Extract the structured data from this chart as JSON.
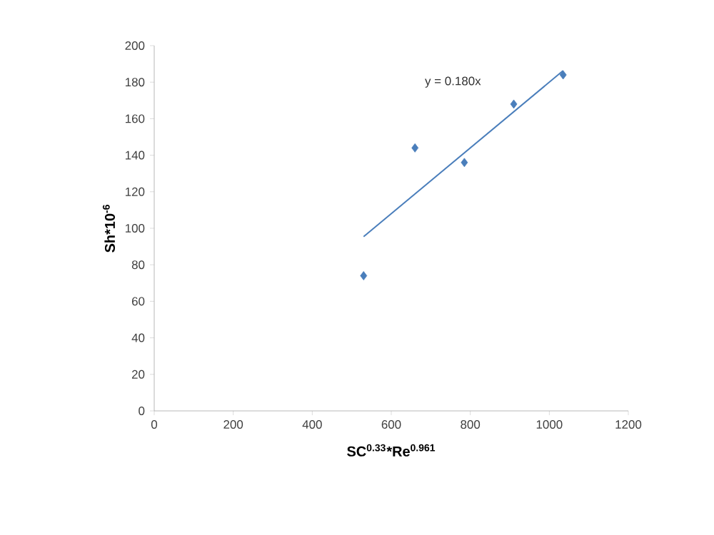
{
  "chart_data": {
    "type": "scatter",
    "xlabel": "SC$^{0.33}$*Re$^{0.961}$",
    "ylabel": "Sh*10$^{-6}$",
    "xlim": [
      0,
      1200
    ],
    "xticks": [
      0,
      200,
      400,
      600,
      800,
      1000,
      1200
    ],
    "ylim": [
      0,
      200
    ],
    "yticks": [
      0,
      20,
      40,
      60,
      80,
      100,
      120,
      140,
      160,
      180,
      200
    ],
    "grid": false,
    "marker": "diamond",
    "series": [
      {
        "color": "#4a7ebb",
        "x": [
          530,
          660,
          785,
          910,
          1035
        ],
        "values": [
          74,
          144,
          136,
          168,
          184
        ]
      },
      {
        "type": "line",
        "color": "#4a7ebb",
        "marker": "none",
        "line_style": "solid",
        "x": [
          530,
          1035
        ],
        "values": [
          95.4,
          186.3
        ]
      }
    ],
    "annotations": [
      "y = 0.180x"
    ]
  }
}
